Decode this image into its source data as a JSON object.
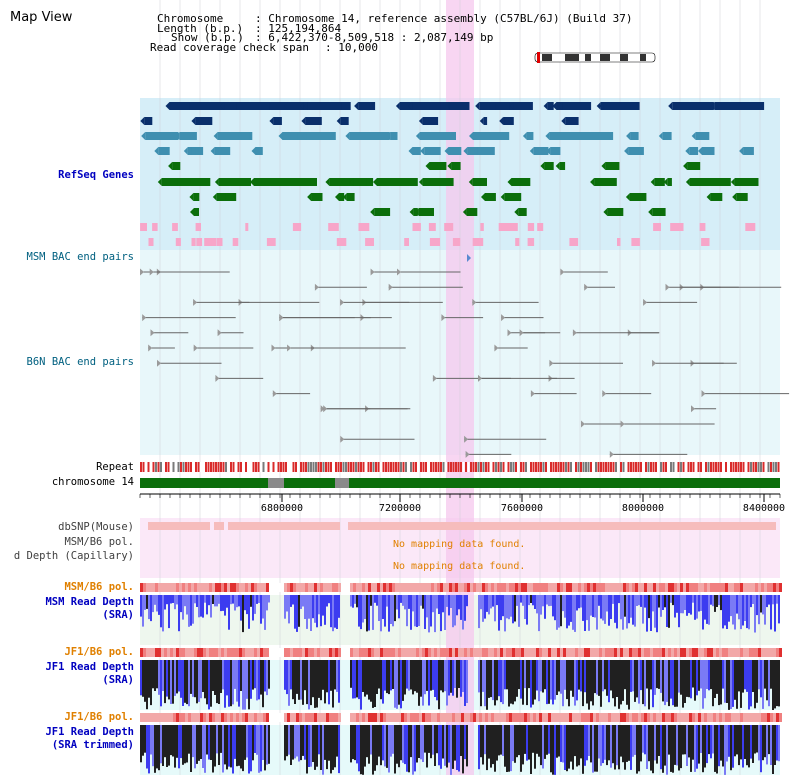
{
  "header": {
    "view_title": "Map View",
    "chromosome_key": "Chromosome",
    "chromosome_value": ": Chromosome 14, reference assembly (C57BL/6J) (Build 37)",
    "length_key": "Length (b.p.)",
    "length_value": ": 125,194,864",
    "show_key": "Show (b.p.)",
    "show_value": ": 6,422,370-8,509,518 : 2,087,149 bp",
    "coverage_key": "Read coverage check span",
    "coverage_value": ": 10,000"
  },
  "tracks": {
    "refseq": "RefSeq Genes",
    "msm_bac": "MSM BAC end pairs",
    "b6n_bac": "B6N BAC end pairs",
    "repeat": "Repeat",
    "chromosome": "chromosome 14",
    "dbsnp": "dbSNP(Mouse)",
    "msm_b6_pol_1": "MSM/B6 pol.",
    "read_depth_cap": "d Depth (Capillary)",
    "msm_b6_pol_2": "MSM/B6 pol.",
    "msm_read_depth_l1": "MSM Read Depth",
    "msm_read_depth_l2": "(SRA)",
    "jf1_b6_pol_1": "JF1/B6 pol.",
    "jf1_read_depth_l1": "JF1 Read Depth",
    "jf1_read_depth_l2": "(SRA)",
    "jf1_b6_pol_2": "JF1/B6 pol.",
    "jf1_trim_l1": "JF1 Read Depth",
    "jf1_trim_l2": "(SRA trimmed)"
  },
  "messages": {
    "no_mapping_1": "No mapping data found.",
    "no_mapping_2": "No mapping data found."
  },
  "axis": {
    "ticks": [
      "6800000",
      "7200000",
      "7600000",
      "8000000",
      "8400000"
    ]
  },
  "colors": {
    "refseq_bg": "#d6eef8",
    "bac_bg": "#e8f7fa",
    "highlight": "#f6c8ee",
    "gene_dark": "#0a2f6b",
    "gene_mid": "#3f8fb0",
    "gene_green": "#0b6e0b",
    "bac_pink": "#f7a6c9",
    "repeat_red": "#d92b2b",
    "chrom_green": "#0b6e0b",
    "depth_blue": "#3c3cf0",
    "depth_black": "#202020",
    "snp_pink": "#f6bcbc",
    "pol_pink": "#f2a8a8",
    "nodata_text": "#e08000",
    "label_blue": "#0000c0",
    "label_orange": "#e08000"
  }
}
